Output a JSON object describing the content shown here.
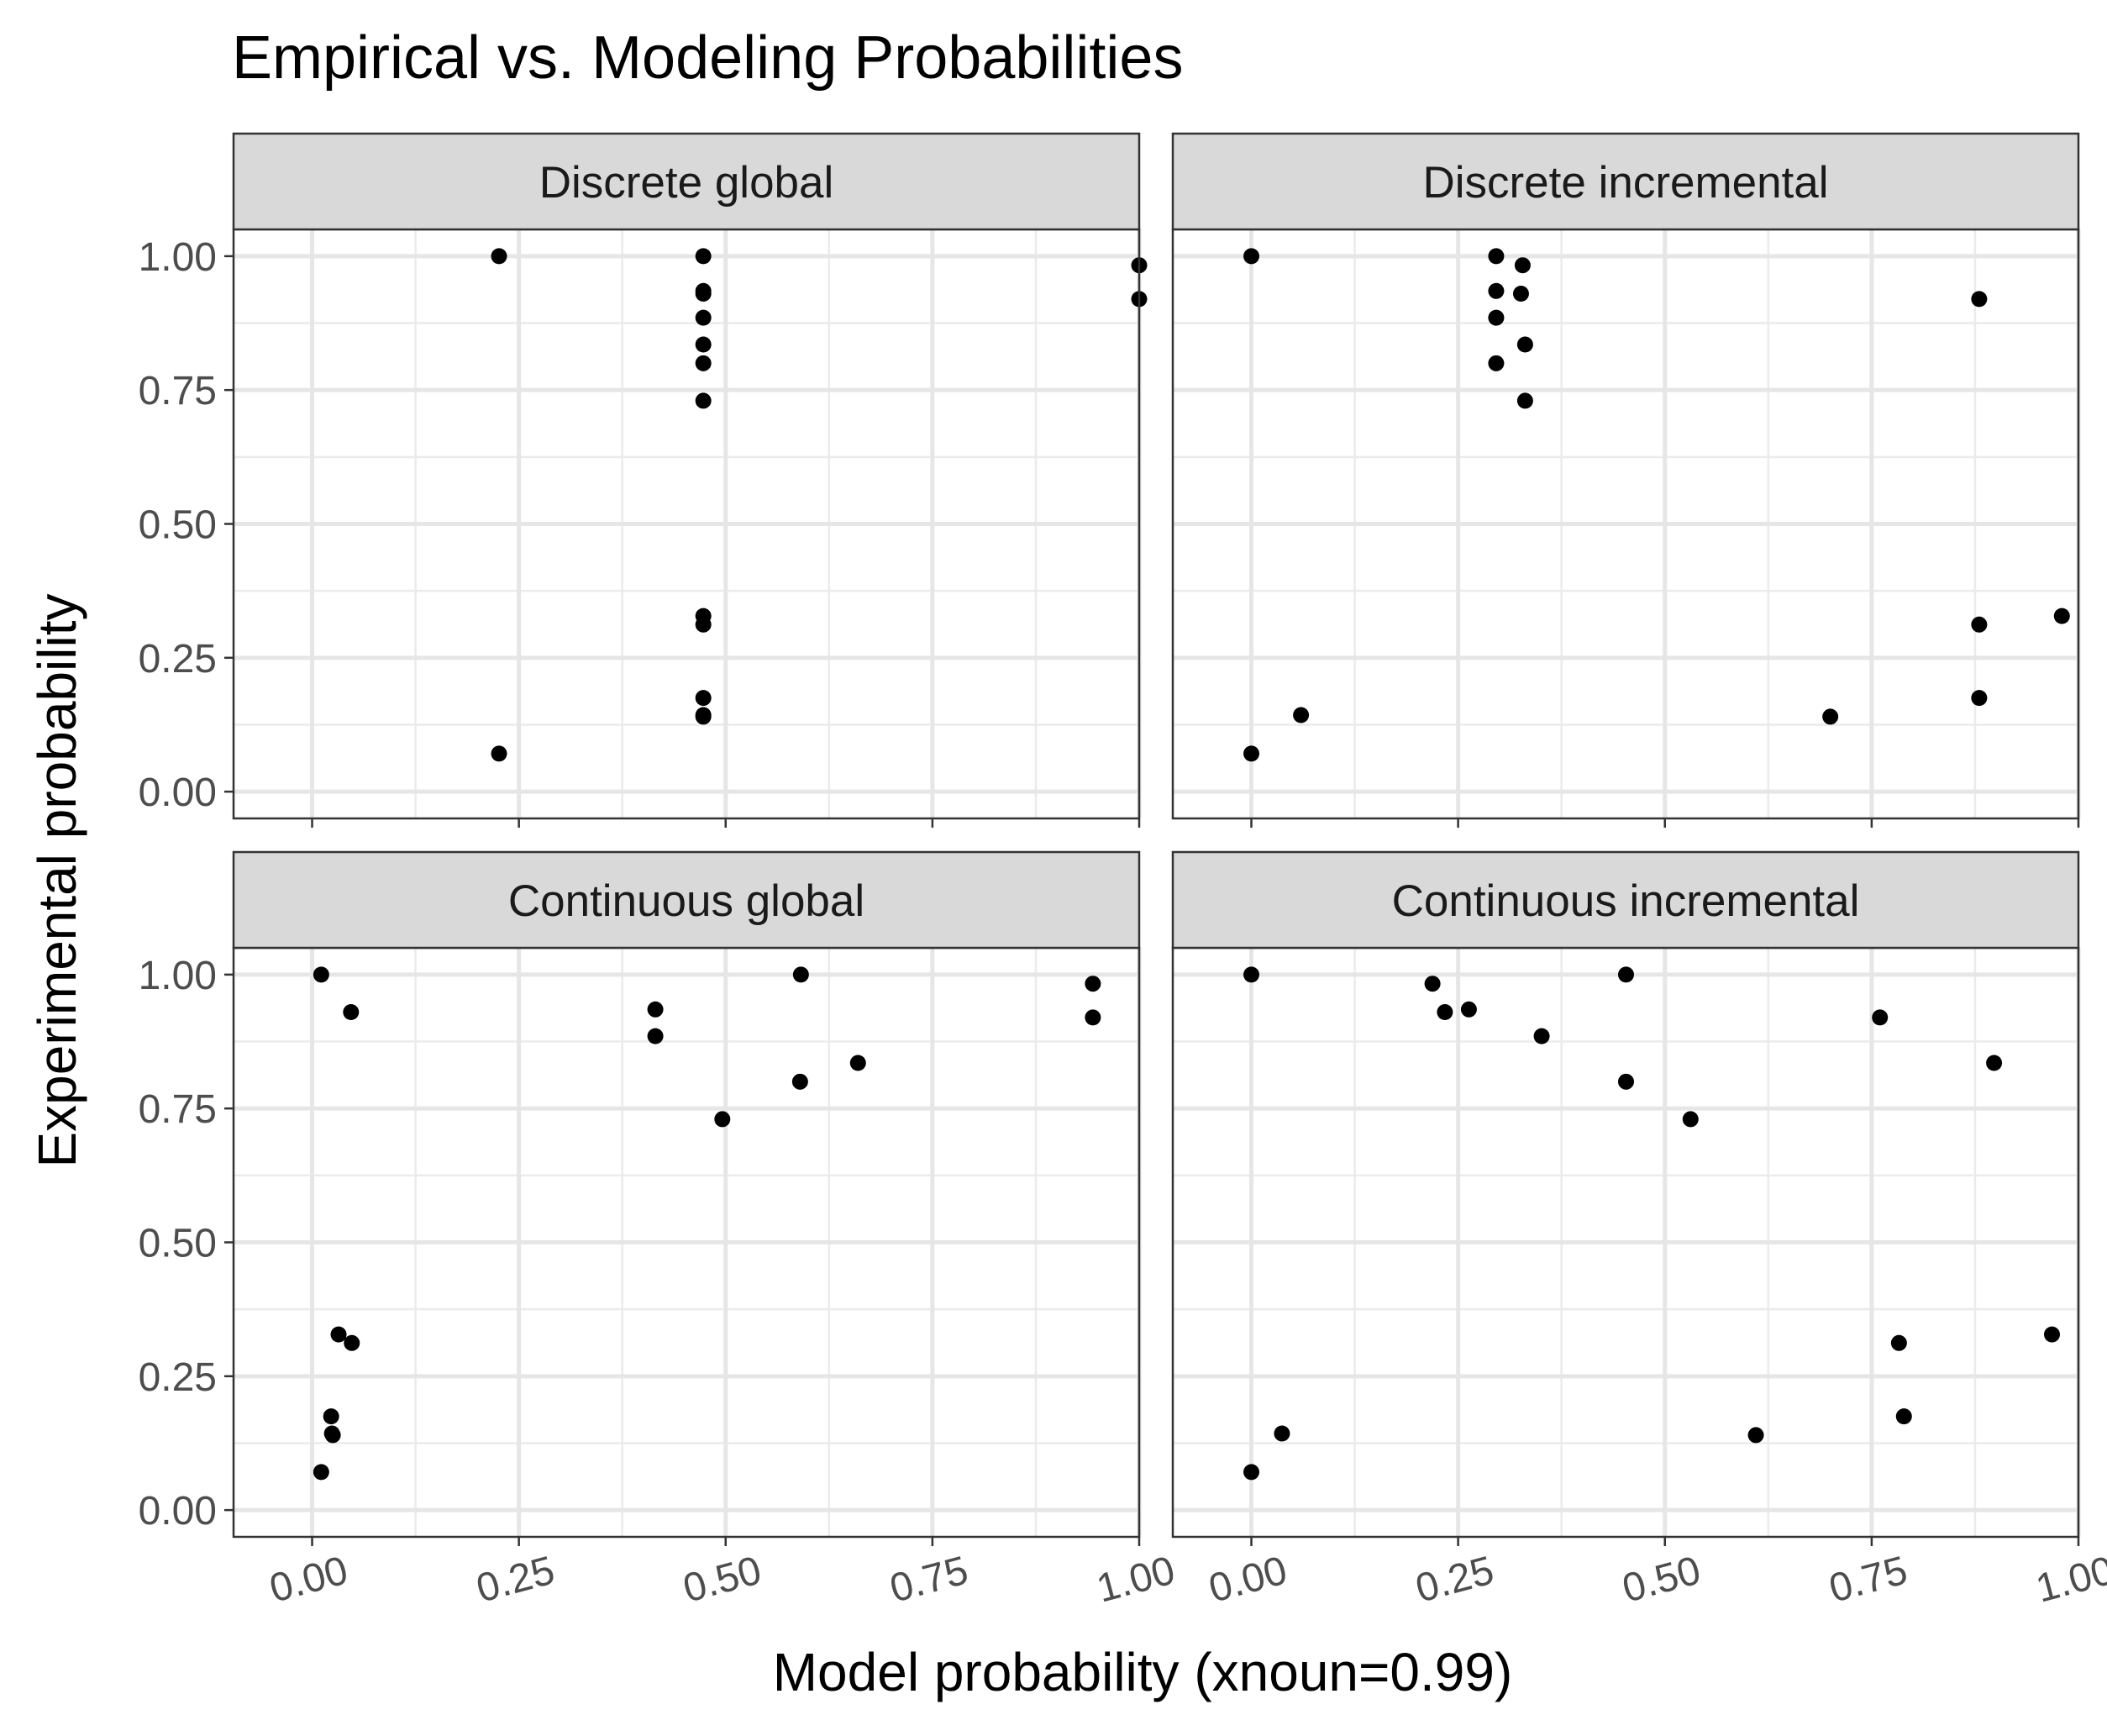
{
  "chart_data": {
    "type": "scatter",
    "title": "Empirical vs. Modeling Probabilities",
    "xlabel": "Model probability (xnoun=0.99)",
    "ylabel": "Experimental probability",
    "xlim": [
      -0.095,
      1.0
    ],
    "ylim": [
      -0.05,
      1.05
    ],
    "x_ticks": [
      0.0,
      0.25,
      0.5,
      0.75,
      1.0
    ],
    "x_tick_labels": [
      "0.00",
      "0.25",
      "0.50",
      "0.75",
      "1.00"
    ],
    "y_ticks": [
      0.0,
      0.25,
      0.5,
      0.75,
      1.0
    ],
    "y_tick_labels": [
      "0.00",
      "0.25",
      "0.50",
      "0.75",
      "1.00"
    ],
    "grid": true,
    "point_color": "#000000",
    "panels": [
      {
        "name": "Discrete global",
        "points": [
          {
            "x": 0.226,
            "y": 1.0
          },
          {
            "x": 0.473,
            "y": 1.0
          },
          {
            "x": 0.473,
            "y": 0.935
          },
          {
            "x": 0.473,
            "y": 0.93
          },
          {
            "x": 0.473,
            "y": 0.885
          },
          {
            "x": 0.473,
            "y": 0.835
          },
          {
            "x": 0.473,
            "y": 0.8
          },
          {
            "x": 0.473,
            "y": 0.73
          },
          {
            "x": 0.473,
            "y": 0.328
          },
          {
            "x": 0.473,
            "y": 0.312
          },
          {
            "x": 0.473,
            "y": 0.175
          },
          {
            "x": 0.473,
            "y": 0.143
          },
          {
            "x": 0.473,
            "y": 0.14
          },
          {
            "x": 0.226,
            "y": 0.071
          },
          {
            "x": 1.0,
            "y": 0.983
          },
          {
            "x": 1.0,
            "y": 0.92
          }
        ]
      },
      {
        "name": "Discrete incremental",
        "points": [
          {
            "x": 0.0,
            "y": 1.0
          },
          {
            "x": 0.296,
            "y": 1.0
          },
          {
            "x": 0.328,
            "y": 0.983
          },
          {
            "x": 0.296,
            "y": 0.935
          },
          {
            "x": 0.326,
            "y": 0.93
          },
          {
            "x": 0.296,
            "y": 0.885
          },
          {
            "x": 0.331,
            "y": 0.835
          },
          {
            "x": 0.296,
            "y": 0.8
          },
          {
            "x": 0.331,
            "y": 0.73
          },
          {
            "x": 0.88,
            "y": 0.92
          },
          {
            "x": 0.88,
            "y": 0.312
          },
          {
            "x": 0.98,
            "y": 0.328
          },
          {
            "x": 0.88,
            "y": 0.175
          },
          {
            "x": 0.7,
            "y": 0.14
          },
          {
            "x": 0.06,
            "y": 0.143
          },
          {
            "x": 0.0,
            "y": 0.071
          }
        ]
      },
      {
        "name": "Continuous global",
        "points": [
          {
            "x": 0.011,
            "y": 1.0
          },
          {
            "x": 0.047,
            "y": 0.93
          },
          {
            "x": 0.415,
            "y": 0.935
          },
          {
            "x": 0.415,
            "y": 0.885
          },
          {
            "x": 0.591,
            "y": 1.0
          },
          {
            "x": 0.59,
            "y": 0.8
          },
          {
            "x": 0.66,
            "y": 0.835
          },
          {
            "x": 0.496,
            "y": 0.73
          },
          {
            "x": 0.944,
            "y": 0.983
          },
          {
            "x": 0.944,
            "y": 0.92
          },
          {
            "x": 0.032,
            "y": 0.328
          },
          {
            "x": 0.048,
            "y": 0.312
          },
          {
            "x": 0.023,
            "y": 0.175
          },
          {
            "x": 0.024,
            "y": 0.143
          },
          {
            "x": 0.025,
            "y": 0.14
          },
          {
            "x": 0.011,
            "y": 0.071
          }
        ]
      },
      {
        "name": "Continuous incremental",
        "points": [
          {
            "x": 0.0,
            "y": 1.0
          },
          {
            "x": 0.219,
            "y": 0.983
          },
          {
            "x": 0.234,
            "y": 0.93
          },
          {
            "x": 0.263,
            "y": 0.935
          },
          {
            "x": 0.351,
            "y": 0.885
          },
          {
            "x": 0.453,
            "y": 1.0
          },
          {
            "x": 0.453,
            "y": 0.8
          },
          {
            "x": 0.531,
            "y": 0.73
          },
          {
            "x": 0.76,
            "y": 0.92
          },
          {
            "x": 0.898,
            "y": 0.835
          },
          {
            "x": 0.783,
            "y": 0.312
          },
          {
            "x": 0.968,
            "y": 0.328
          },
          {
            "x": 0.789,
            "y": 0.175
          },
          {
            "x": 0.61,
            "y": 0.14
          },
          {
            "x": 0.037,
            "y": 0.143
          },
          {
            "x": 0.0,
            "y": 0.071
          }
        ]
      }
    ]
  }
}
